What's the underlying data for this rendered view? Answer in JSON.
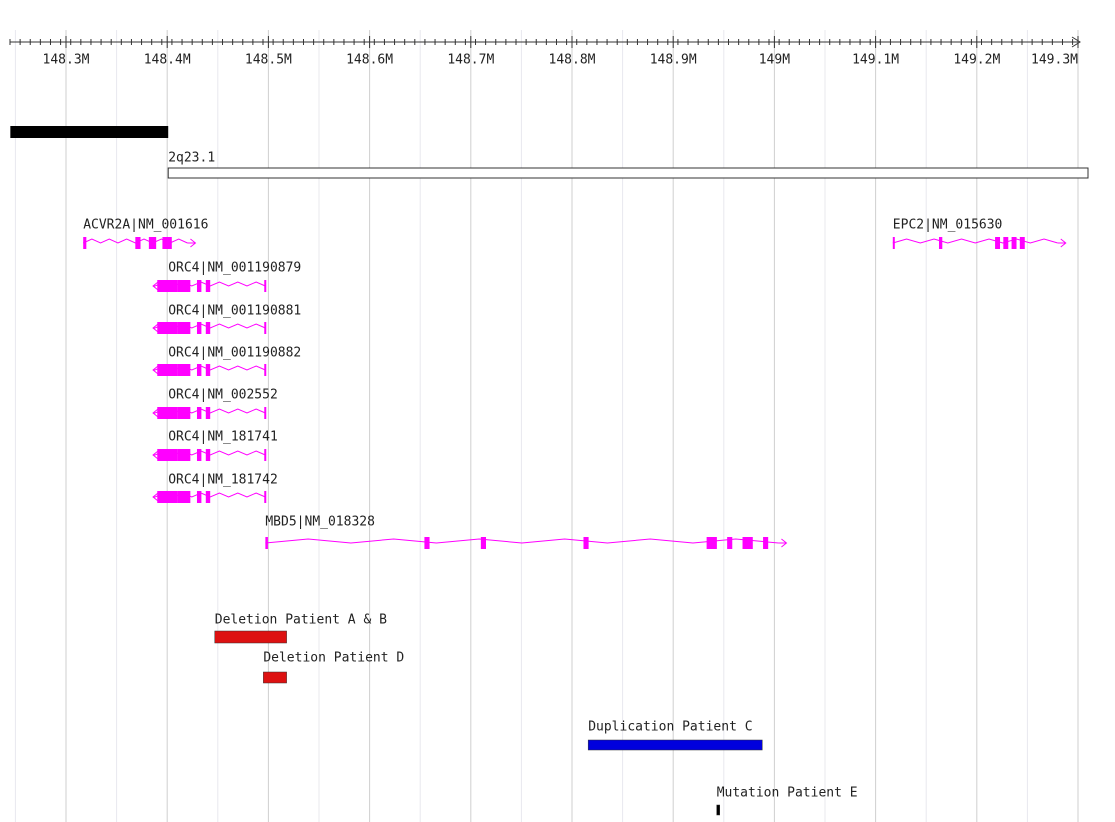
{
  "ruler": {
    "range": [
      148.245,
      149.3
    ],
    "ticks": [
      {
        "value": 148.3,
        "label": "148.3M"
      },
      {
        "value": 148.4,
        "label": "148.4M"
      },
      {
        "value": 148.5,
        "label": "148.5M"
      },
      {
        "value": 148.6,
        "label": "148.6M"
      },
      {
        "value": 148.7,
        "label": "148.7M"
      },
      {
        "value": 148.8,
        "label": "148.8M"
      },
      {
        "value": 148.9,
        "label": "148.9M"
      },
      {
        "value": 149,
        "label": "149M"
      },
      {
        "value": 149.1,
        "label": "149.1M"
      },
      {
        "value": 149.2,
        "label": "149.2M"
      },
      {
        "value": 149.3,
        "label": "149.3M"
      }
    ]
  },
  "cytobands": [
    {
      "start": 148.245,
      "end": 148.401,
      "color": "#000000"
    },
    {
      "label": "2q23.1",
      "start": 148.401,
      "end": 149.3,
      "color": "#ffffff"
    }
  ],
  "genes": [
    {
      "label": "ACVR2A|NM_001616",
      "start": 148.317,
      "end": 148.42,
      "strand": "+"
    },
    {
      "label": "ORC4|NM_001190879",
      "start": 148.388,
      "end": 148.497,
      "strand": "-"
    },
    {
      "label": "ORC4|NM_001190881",
      "start": 148.388,
      "end": 148.497,
      "strand": "-"
    },
    {
      "label": "ORC4|NM_001190882",
      "start": 148.388,
      "end": 148.497,
      "strand": "-"
    },
    {
      "label": "ORC4|NM_002552",
      "start": 148.388,
      "end": 148.497,
      "strand": "-"
    },
    {
      "label": "ORC4|NM_181741",
      "start": 148.388,
      "end": 148.497,
      "strand": "-"
    },
    {
      "label": "ORC4|NM_181742",
      "start": 148.388,
      "end": 148.497,
      "strand": "-"
    },
    {
      "label": "MBD5|NM_018328",
      "start": 148.497,
      "end": 149.004,
      "strand": "+"
    },
    {
      "label": "EPC2|NM_015630",
      "start": 149.117,
      "end": 149.28,
      "strand": "+"
    }
  ],
  "gene_color": "#ff00ff",
  "variants": [
    {
      "label": "Deletion Patient A & B",
      "start": 148.447,
      "end": 148.518,
      "color": "#dd1111"
    },
    {
      "label": "Deletion Patient D",
      "start": 148.495,
      "end": 148.518,
      "color": "#dd1111"
    },
    {
      "label": "Duplication Patient C",
      "start": 148.816,
      "end": 148.988,
      "color": "#0000dd"
    },
    {
      "label": "Mutation Patient E",
      "start": 148.943,
      "end": 148.944,
      "color": "#000000"
    }
  ]
}
